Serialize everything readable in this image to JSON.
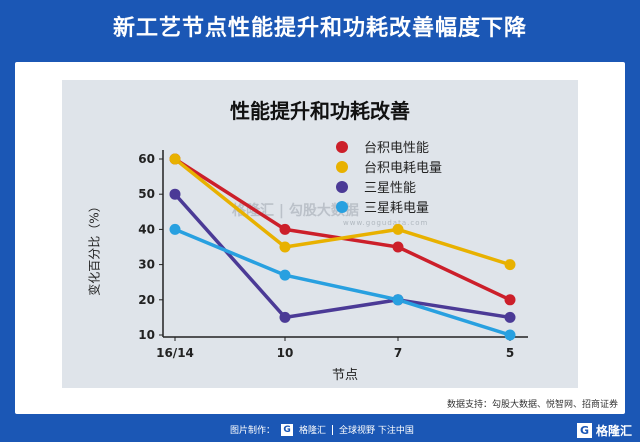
{
  "banner": {
    "title": "新工艺节点性能提升和功耗改善幅度下降"
  },
  "watermark": {
    "brand": "格隆汇 | 勾股大数据",
    "site": "www.gogudata.com"
  },
  "source": "数据支持：勾股大数据、悦智网、招商证券",
  "footer": {
    "made_by": "图片制作：",
    "brand": "格隆汇",
    "slogan": "全球视野 下注中国",
    "right_brand": "格隆汇"
  },
  "colors": {
    "background": "#1b57b5",
    "panel": "#dfe4ea",
    "series": [
      "#cc1f2a",
      "#e8b100",
      "#4b3a96",
      "#28a0e0"
    ]
  },
  "chart_data": {
    "type": "line",
    "title": "性能提升和功耗改善",
    "xlabel": "节点",
    "ylabel": "变化百分比（%）",
    "categories": [
      "16/14",
      "10",
      "7",
      "5"
    ],
    "ylim": [
      10,
      60
    ],
    "yticks": [
      10,
      20,
      30,
      40,
      50,
      60
    ],
    "legend_position": "top-right",
    "grid": false,
    "series": [
      {
        "name": "台积电性能",
        "values": [
          60,
          40,
          35,
          20
        ]
      },
      {
        "name": "台积电耗电量",
        "values": [
          60,
          35,
          40,
          30
        ]
      },
      {
        "name": "三星性能",
        "values": [
          50,
          15,
          20,
          15
        ]
      },
      {
        "name": "三星耗电量",
        "values": [
          40,
          27,
          20,
          10
        ]
      }
    ]
  }
}
